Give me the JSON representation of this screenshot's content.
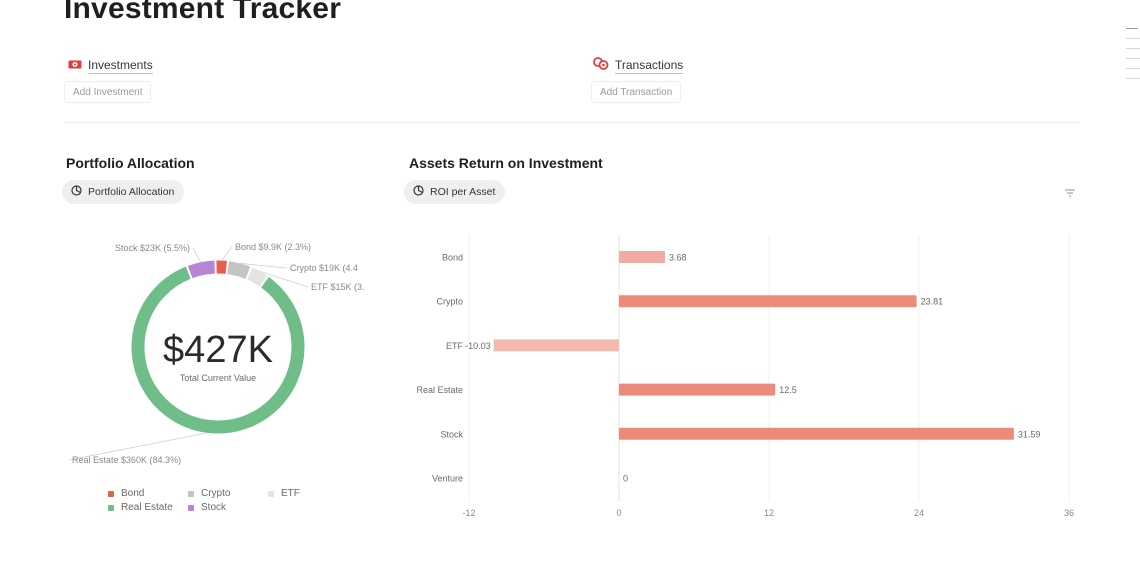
{
  "header": {
    "title": "Investment Tracker"
  },
  "links": {
    "investments": {
      "label": "Investments",
      "add_label": "Add Investment"
    },
    "transactions": {
      "label": "Transactions",
      "add_label": "Add Transaction"
    }
  },
  "portfolio": {
    "heading": "Portfolio Allocation",
    "view_label": "Portfolio Allocation",
    "center_value": "$427K",
    "center_caption": "Total Current Value"
  },
  "roi": {
    "heading": "Assets Return on Investment",
    "view_label": "ROI per Asset"
  },
  "colors": {
    "bond": "#e8604c",
    "crypto": "#c4c4c2",
    "etf": "#e4e4e2",
    "real_estate": "#6fbe8a",
    "stock": "#b784d6",
    "roi_bar": "#ec8a7b",
    "roi_bar_light": "#f4b8ae"
  },
  "chart_data": [
    {
      "type": "pie",
      "title": "Portfolio Allocation",
      "categories": [
        "Bond",
        "Crypto",
        "ETF",
        "Real Estate",
        "Stock"
      ],
      "values": [
        9.9,
        19,
        15,
        360,
        23
      ],
      "unit": "$K",
      "slice_labels": [
        "Bond $9.9K (2.3%)",
        "Crypto $19K (4.4",
        "ETF $15K (3.",
        "Real Estate $360K (84.3%)",
        "Stock $23K (5.5%)"
      ],
      "legend": [
        "Bond",
        "Crypto",
        "ETF",
        "Real Estate",
        "Stock"
      ],
      "legend_placement": "bottom"
    },
    {
      "type": "bar",
      "orientation": "horizontal",
      "categories": [
        "Bond",
        "Crypto",
        "ETF",
        "Real Estate",
        "Stock",
        "Venture"
      ],
      "values": [
        3.68,
        23.81,
        -10.03,
        12.5,
        31.59,
        0
      ],
      "value_labels": [
        "3.68",
        "23.81",
        "-10.03",
        "12.5",
        "31.59",
        "0"
      ],
      "xlim": [
        -12,
        36
      ],
      "xticks": [
        "-12",
        "0",
        "12",
        "24",
        "36"
      ],
      "grid": true
    }
  ]
}
